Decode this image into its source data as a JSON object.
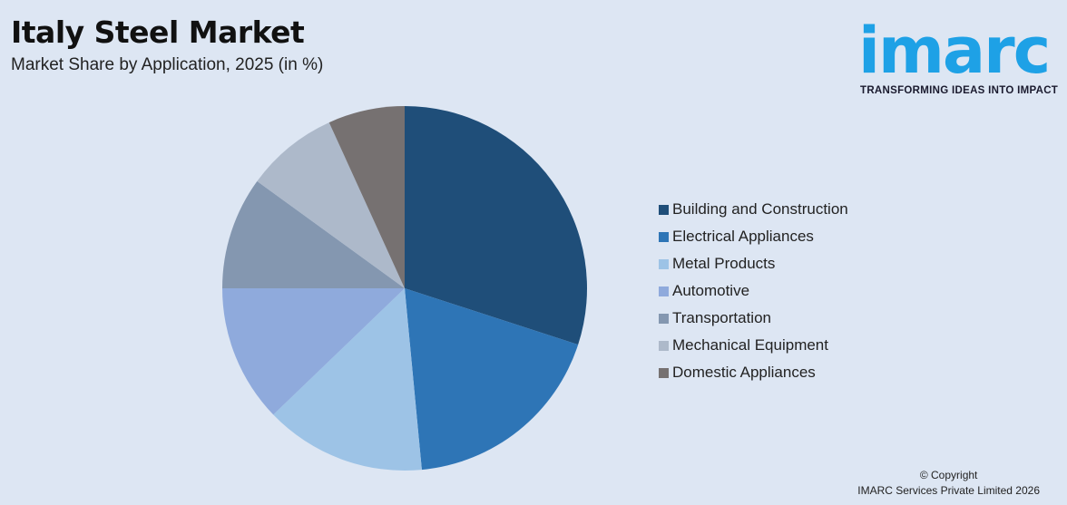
{
  "header": {
    "title": "Italy Steel Market",
    "subtitle": "Market Share by Application, 2025 (in %)"
  },
  "logo": {
    "word": "imarc",
    "tagline": "TRANSFORMING IDEAS INTO IMPACT",
    "color": "#1ea1e6"
  },
  "footer": {
    "line1": "© Copyright",
    "line2": "IMARC Services Private Limited 2026"
  },
  "chart_data": {
    "type": "pie",
    "title": "Italy Steel Market",
    "subtitle": "Market Share by Application, 2025 (in %)",
    "start": "12 o'clock",
    "direction": "clockwise",
    "legend_position": "right",
    "slices": [
      {
        "label": "Building and Construction",
        "value": 30.0,
        "color": "#1f4e79"
      },
      {
        "label": "Electrical Appliances",
        "value": 18.5,
        "color": "#2e75b6"
      },
      {
        "label": "Metal Products",
        "value": 14.3,
        "color": "#9dc3e6"
      },
      {
        "label": "Automotive",
        "value": 12.2,
        "color": "#8faadc"
      },
      {
        "label": "Transportation",
        "value": 10.0,
        "color": "#8497b0"
      },
      {
        "label": "Mechanical Equipment",
        "value": 8.2,
        "color": "#adb9ca"
      },
      {
        "label": "Domestic Appliances",
        "value": 6.8,
        "color": "#767171"
      }
    ]
  }
}
